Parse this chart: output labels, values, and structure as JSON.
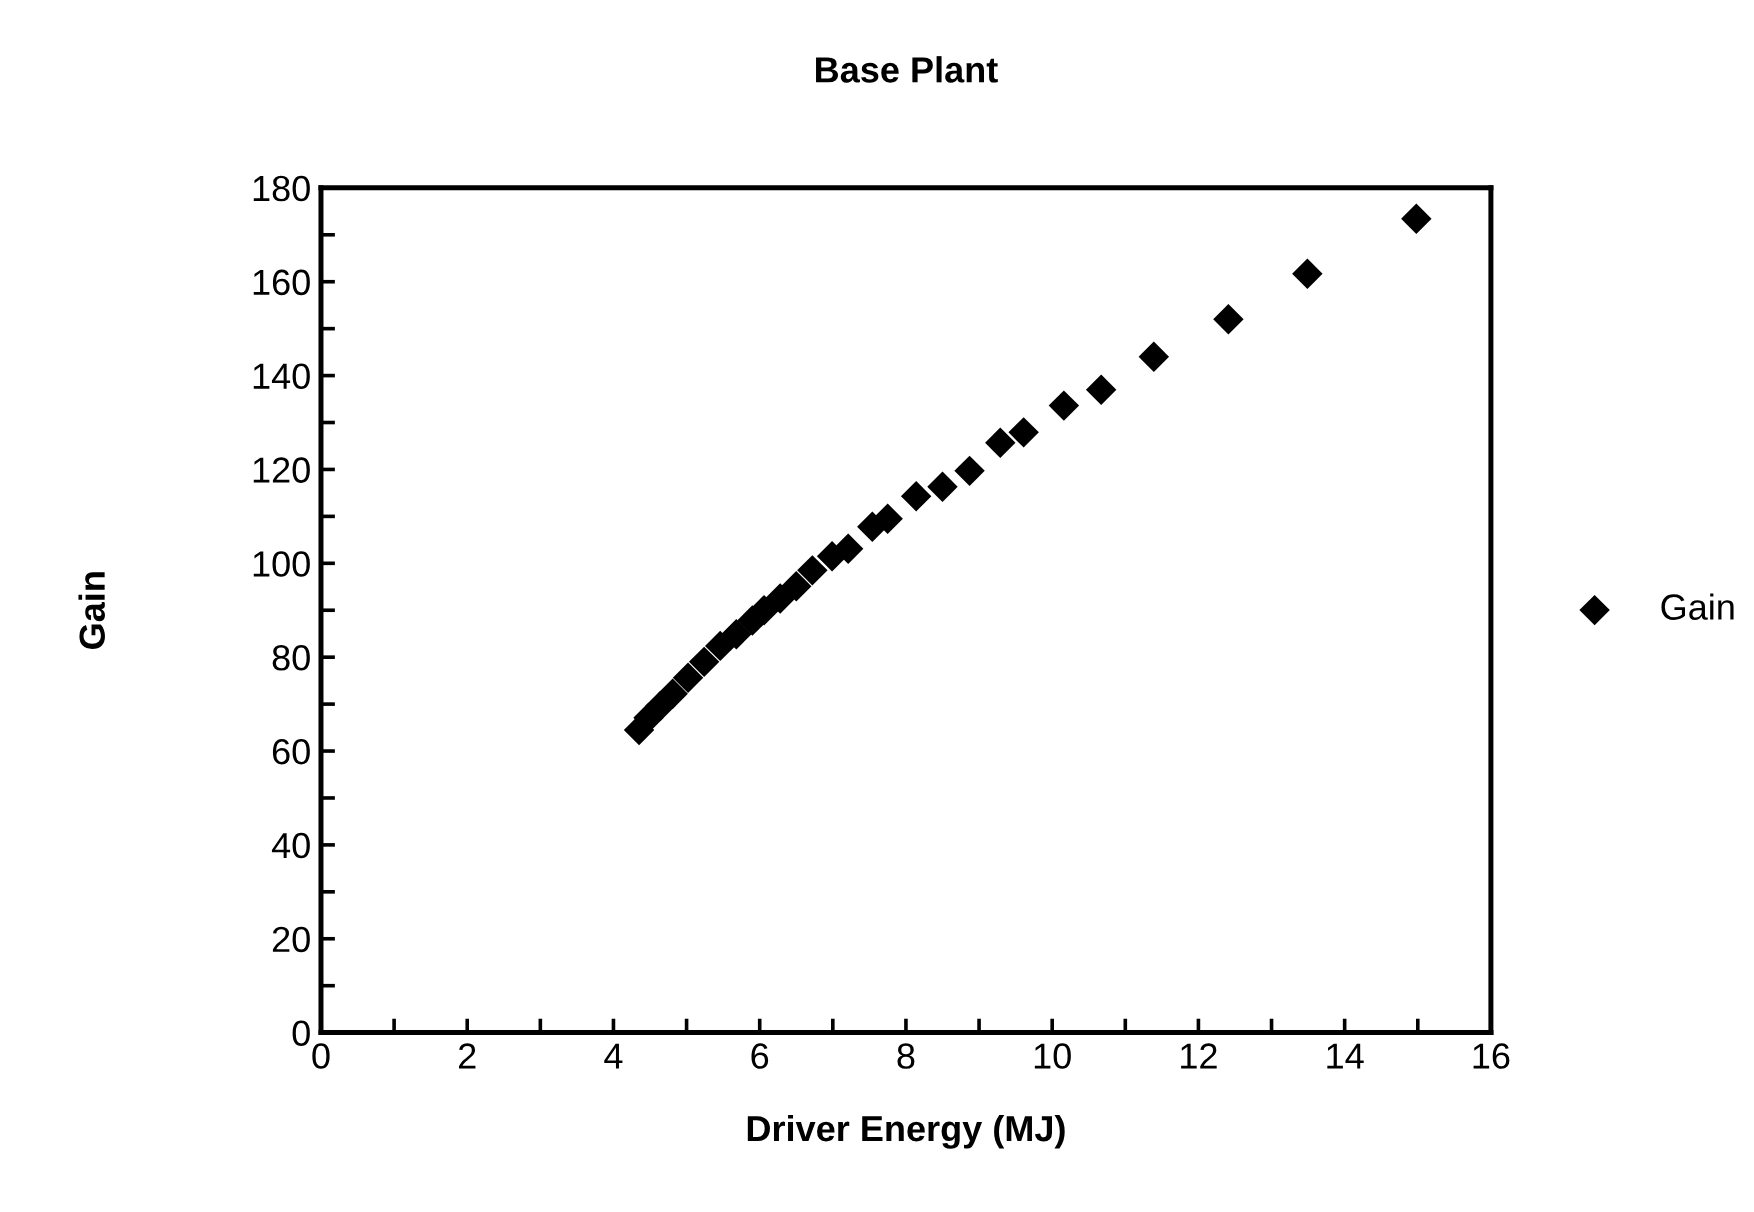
{
  "chart_data": {
    "type": "scatter",
    "title": "Base Plant",
    "xlabel": "Driver Energy (MJ)",
    "ylabel": "Gain",
    "xlim": [
      0,
      16
    ],
    "ylim": [
      0,
      180
    ],
    "xticks": [
      0,
      {
        "value": 1,
        "label": null
      },
      2,
      {
        "value": 3,
        "label": null
      },
      4,
      {
        "value": 5,
        "label": null
      },
      6,
      {
        "value": 7,
        "label": null
      },
      8,
      {
        "value": 9,
        "label": null
      },
      10,
      {
        "value": 11,
        "label": null
      },
      12,
      {
        "value": 13,
        "label": null
      },
      14,
      {
        "value": 15,
        "label": null
      },
      16
    ],
    "yticks": [
      0,
      {
        "value": 10,
        "label": null
      },
      20,
      {
        "value": 30,
        "label": null
      },
      40,
      {
        "value": 50,
        "label": null
      },
      60,
      {
        "value": 70,
        "label": null
      },
      80,
      {
        "value": 90,
        "label": null
      },
      100,
      {
        "value": 110,
        "label": null
      },
      120,
      {
        "value": 130,
        "label": null
      },
      140,
      {
        "value": 150,
        "label": null
      },
      160,
      {
        "value": 170,
        "label": null
      },
      180
    ],
    "marker": "diamond",
    "legend": "right",
    "grid": false,
    "series": [
      {
        "name": "Gain",
        "color": "#000000",
        "x": [
          4.35,
          4.48,
          4.64,
          4.81,
          5.02,
          5.24,
          5.46,
          5.68,
          5.9,
          6.06,
          6.28,
          6.5,
          6.72,
          6.99,
          7.21,
          7.54,
          7.75,
          8.14,
          8.5,
          8.87,
          9.29,
          9.61,
          10.16,
          10.67,
          11.39,
          12.41,
          13.49,
          14.98
        ],
        "values": [
          64.5,
          67.1,
          69.6,
          72.2,
          75.6,
          79.0,
          82.4,
          84.9,
          87.8,
          90.0,
          92.5,
          95.1,
          98.5,
          101.5,
          103.1,
          107.8,
          109.5,
          114.3,
          116.3,
          119.7,
          125.7,
          127.9,
          133.6,
          137.0,
          144.0,
          152.0,
          161.7,
          173.4
        ]
      }
    ]
  }
}
